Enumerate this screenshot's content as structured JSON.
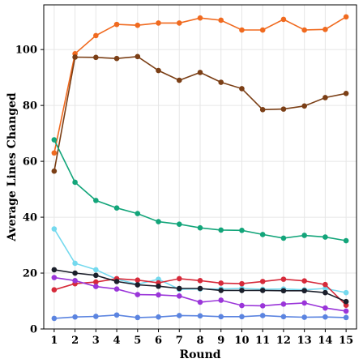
{
  "chart_data": {
    "type": "line",
    "title": "",
    "xlabel": "Round",
    "ylabel": "Average Lines Changed",
    "x": [
      1,
      2,
      3,
      4,
      5,
      6,
      7,
      8,
      9,
      10,
      11,
      12,
      13,
      14,
      15
    ],
    "xlim": [
      0.5,
      15.5
    ],
    "ylim": [
      0,
      116
    ],
    "yticks": [
      0,
      20,
      40,
      60,
      80,
      100
    ],
    "grid": true,
    "legend": "none",
    "series": [
      {
        "color": "#f06a1f",
        "values": [
          63,
          98.5,
          105,
          109,
          108.7,
          109.5,
          109.5,
          111.3,
          110.5,
          107,
          107,
          110.8,
          107,
          107.2,
          111.7
        ]
      },
      {
        "color": "#7b3f16",
        "values": [
          56.5,
          97.3,
          97.2,
          96.8,
          97.5,
          92.5,
          89,
          91.8,
          88.3,
          86,
          78.5,
          78.7,
          79.8,
          82.8,
          84.3
        ]
      },
      {
        "color": "#13a57a",
        "values": [
          67.7,
          52.5,
          46,
          43.3,
          41.3,
          38.4,
          37.5,
          36.2,
          35.4,
          35.3,
          33.8,
          32.5,
          33.5,
          32.9,
          31.6
        ]
      },
      {
        "color": "#74d9ee",
        "values": [
          35.8,
          23.5,
          21.2,
          17.8,
          16,
          17.8,
          14.2,
          14.3,
          14.3,
          14.5,
          14.2,
          14.3,
          14,
          14.5,
          13
        ]
      },
      {
        "color": "#d62a3a",
        "values": [
          14,
          16.2,
          16.8,
          18,
          17.5,
          16.5,
          18,
          17.3,
          16.4,
          16.2,
          17,
          17.8,
          17.2,
          15.9,
          8.5
        ]
      },
      {
        "color": "#1b1f2b",
        "values": [
          21.2,
          20,
          19.2,
          17,
          15.8,
          15.3,
          14.5,
          14.5,
          13.8,
          13.8,
          13.8,
          13.7,
          13.7,
          13,
          9.8
        ]
      },
      {
        "color": "#9a35d9",
        "values": [
          18.4,
          17.3,
          15.2,
          14.3,
          12.3,
          12.2,
          11.8,
          9.6,
          10.3,
          8.4,
          8.3,
          8.9,
          9.3,
          7.5,
          6.4
        ]
      },
      {
        "color": "#5b84e0",
        "values": [
          3.8,
          4.3,
          4.5,
          5,
          4.1,
          4.3,
          4.8,
          4.7,
          4.4,
          4.4,
          4.8,
          4.4,
          4.2,
          4.3,
          4.1
        ]
      }
    ]
  }
}
